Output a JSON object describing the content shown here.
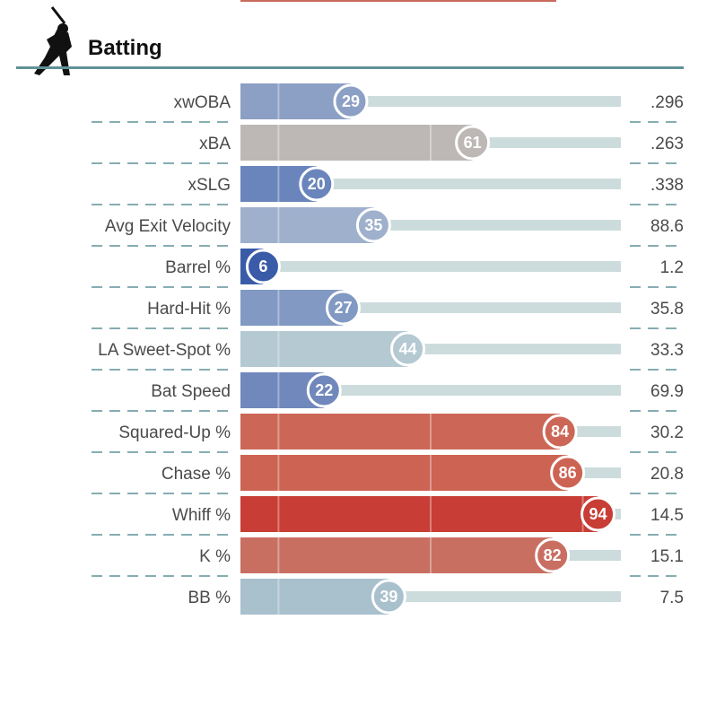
{
  "section": {
    "title": "Batting",
    "icon": "batter-silhouette-icon",
    "accent_color": "#5f9298"
  },
  "chart_data": {
    "type": "bar",
    "orientation": "horizontal",
    "xlim": [
      0,
      100
    ],
    "categories": [
      "xwOBA",
      "xBA",
      "xSLG",
      "Avg Exit Velocity",
      "Barrel %",
      "Hard-Hit %",
      "LA Sweet-Spot %",
      "Bat Speed",
      "Squared-Up %",
      "Chase %",
      "Whiff %",
      "K %",
      "BB %"
    ],
    "series": [
      {
        "values": [
          29,
          61,
          20,
          35,
          6,
          27,
          44,
          22,
          84,
          86,
          94,
          82,
          39
        ],
        "colors": [
          "#8c9fc4",
          "#bdb8b5",
          "#6a85bb",
          "#9fb0cd",
          "#3a5ca8",
          "#8199c3",
          "#b4c9d2",
          "#7088bc",
          "#cc6757",
          "#cd6353",
          "#c83d35",
          "#c96f62",
          "#a9c0cd"
        ]
      }
    ],
    "stat_values": [
      ".296",
      ".263",
      ".338",
      "88.6",
      "1.2",
      "35.8",
      "33.3",
      "69.9",
      "30.2",
      "20.8",
      "14.5",
      "15.1",
      "7.5"
    ]
  }
}
